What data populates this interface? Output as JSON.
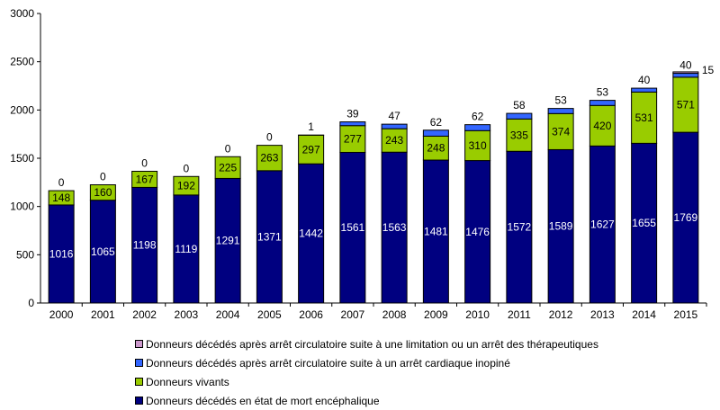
{
  "chart_data": {
    "type": "bar",
    "stacked": true,
    "categories": [
      "2000",
      "2001",
      "2002",
      "2003",
      "2004",
      "2005",
      "2006",
      "2007",
      "2008",
      "2009",
      "2010",
      "2011",
      "2012",
      "2013",
      "2014",
      "2015"
    ],
    "ylim": [
      0,
      3000
    ],
    "yticks": [
      0,
      500,
      1000,
      1500,
      2000,
      2500,
      3000
    ],
    "grid": false,
    "legend_position": "bottom",
    "series": [
      {
        "name": "Donneurs décédés en état de mort encéphalique",
        "color": "#000080",
        "values": [
          1016,
          1065,
          1198,
          1119,
          1291,
          1371,
          1442,
          1561,
          1563,
          1481,
          1476,
          1572,
          1589,
          1627,
          1655,
          1769
        ]
      },
      {
        "name": "Donneurs vivants",
        "color": "#99cc00",
        "values": [
          148,
          160,
          167,
          192,
          225,
          263,
          297,
          277,
          243,
          248,
          310,
          335,
          374,
          420,
          531,
          571
        ]
      },
      {
        "name": "Donneurs décédés après arrêt circulatoire suite à un arrêt cardiaque inopiné",
        "color": "#3366ff",
        "values": [
          0,
          0,
          0,
          0,
          0,
          0,
          1,
          39,
          47,
          62,
          62,
          58,
          53,
          53,
          40,
          40
        ]
      },
      {
        "name": "Donneurs décédés après arrêt circulatoire suite à une limitation ou un arrêt des thérapeutiques",
        "color": "#cc99cc",
        "values": [
          null,
          null,
          null,
          null,
          null,
          null,
          null,
          null,
          null,
          null,
          null,
          null,
          null,
          null,
          null,
          15
        ]
      }
    ]
  }
}
